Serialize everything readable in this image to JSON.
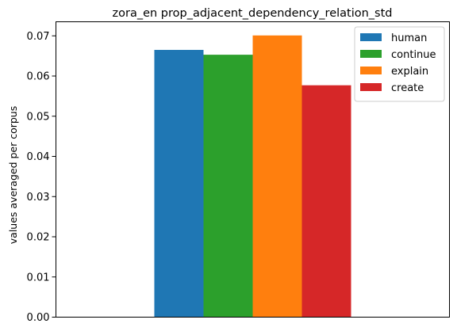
{
  "chart_data": {
    "type": "bar",
    "title": "zora_en prop_adjacent_dependency_relation_std",
    "xlabel": "",
    "ylabel": "values averaged per corpus",
    "ylim": [
      0,
      0.0735
    ],
    "y_ticks": [
      "0.00",
      "0.01",
      "0.02",
      "0.03",
      "0.04",
      "0.05",
      "0.06",
      "0.07"
    ],
    "grid": false,
    "legend_position": "top-right",
    "series": [
      {
        "name": "human",
        "value": 0.0665,
        "color": "#1f77b4"
      },
      {
        "name": "continue",
        "value": 0.0653,
        "color": "#2ca02c"
      },
      {
        "name": "explain",
        "value": 0.0701,
        "color": "#ff7f0e"
      },
      {
        "name": "create",
        "value": 0.0577,
        "color": "#d62728"
      }
    ]
  }
}
